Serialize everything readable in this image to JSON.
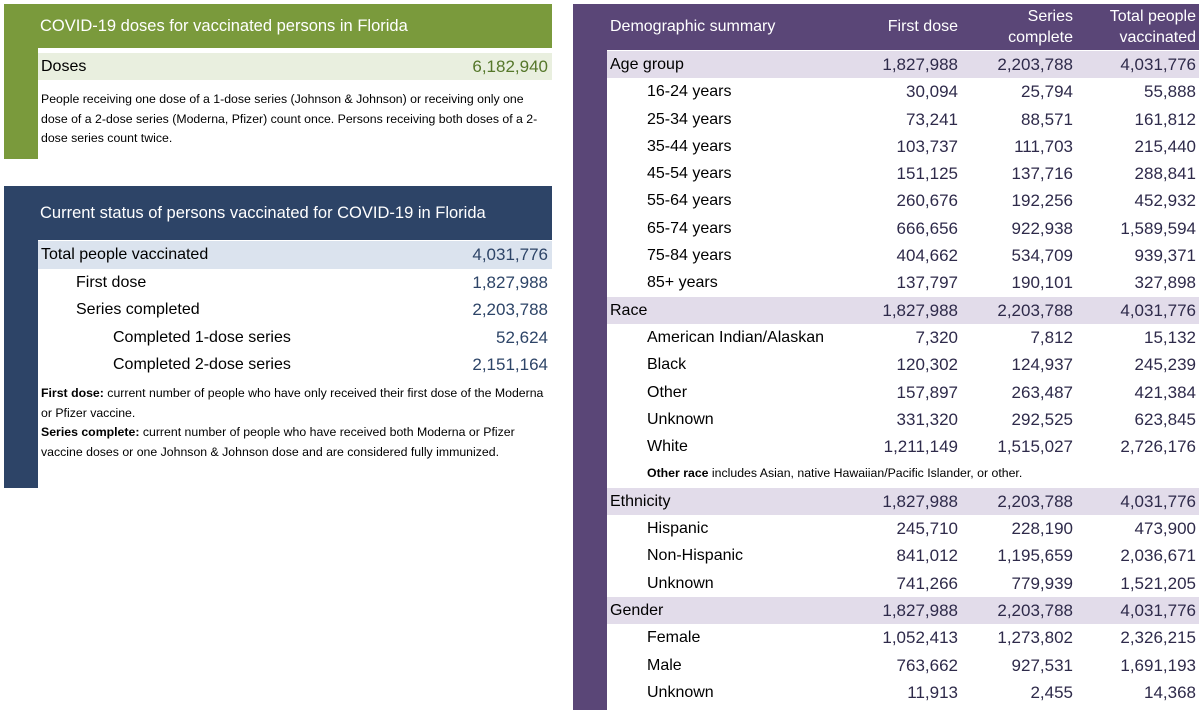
{
  "doses_panel": {
    "title": "COVID-19 doses for vaccinated persons in Florida",
    "label": "Doses",
    "value": "6,182,940",
    "note": "People receiving one dose of a 1-dose series (Johnson & Johnson) or receiving only one dose of a 2-dose series (Moderna, Pfizer) count once. Persons receiving both doses of a 2-dose series count twice."
  },
  "status_panel": {
    "title": "Current status of persons vaccinated for COVID-19 in Florida",
    "rows": [
      {
        "label": "Total people vaccinated",
        "value": "4,031,776"
      },
      {
        "label": "First dose",
        "value": "1,827,988"
      },
      {
        "label": "Series completed",
        "value": "2,203,788"
      },
      {
        "label": "Completed 1-dose series",
        "value": "52,624"
      },
      {
        "label": "Completed 2-dose series",
        "value": "2,151,164"
      }
    ],
    "notes": {
      "first_dose_term": "First dose:",
      "first_dose_text": " current number of people who have only received their first dose of the Moderna or Pfizer vaccine.",
      "series_term": "Series complete:",
      "series_text": " current number of people who have received both Moderna or Pfizer vaccine doses or one Johnson & Johnson dose and are considered fully immunized."
    }
  },
  "demographic": {
    "header": {
      "title": "Demographic summary",
      "col1": "First dose",
      "col2_line1": "Series",
      "col2_line2": "complete",
      "col3_line1": "Total people",
      "col3_line2": "vaccinated"
    },
    "age": {
      "label": "Age group",
      "v1": "1,827,988",
      "v2": "2,203,788",
      "v3": "4,031,776",
      "rows": [
        {
          "label": "16-24 years",
          "v1": "30,094",
          "v2": "25,794",
          "v3": "55,888"
        },
        {
          "label": "25-34 years",
          "v1": "73,241",
          "v2": "88,571",
          "v3": "161,812"
        },
        {
          "label": "35-44 years",
          "v1": "103,737",
          "v2": "111,703",
          "v3": "215,440"
        },
        {
          "label": "45-54 years",
          "v1": "151,125",
          "v2": "137,716",
          "v3": "288,841"
        },
        {
          "label": "55-64 years",
          "v1": "260,676",
          "v2": "192,256",
          "v3": "452,932"
        },
        {
          "label": "65-74 years",
          "v1": "666,656",
          "v2": "922,938",
          "v3": "1,589,594"
        },
        {
          "label": "75-84 years",
          "v1": "404,662",
          "v2": "534,709",
          "v3": "939,371"
        },
        {
          "label": "85+ years",
          "v1": "137,797",
          "v2": "190,101",
          "v3": "327,898"
        }
      ]
    },
    "race": {
      "label": "Race",
      "v1": "1,827,988",
      "v2": "2,203,788",
      "v3": "4,031,776",
      "rows": [
        {
          "label": "American Indian/Alaskan",
          "v1": "7,320",
          "v2": "7,812",
          "v3": "15,132"
        },
        {
          "label": "Black",
          "v1": "120,302",
          "v2": "124,937",
          "v3": "245,239"
        },
        {
          "label": "Other",
          "v1": "157,897",
          "v2": "263,487",
          "v3": "421,384"
        },
        {
          "label": "Unknown",
          "v1": "331,320",
          "v2": "292,525",
          "v3": "623,845"
        },
        {
          "label": "White",
          "v1": "1,211,149",
          "v2": "1,515,027",
          "v3": "2,726,176"
        }
      ],
      "note_term": "Other race",
      "note_text": " includes Asian, native Hawaiian/Pacific Islander, or other."
    },
    "ethnicity": {
      "label": "Ethnicity",
      "v1": "1,827,988",
      "v2": "2,203,788",
      "v3": "4,031,776",
      "rows": [
        {
          "label": "Hispanic",
          "v1": "245,710",
          "v2": "228,190",
          "v3": "473,900"
        },
        {
          "label": "Non-Hispanic",
          "v1": "841,012",
          "v2": "1,195,659",
          "v3": "2,036,671"
        },
        {
          "label": "Unknown",
          "v1": "741,266",
          "v2": "779,939",
          "v3": "1,521,205"
        }
      ]
    },
    "gender": {
      "label": "Gender",
      "v1": "1,827,988",
      "v2": "2,203,788",
      "v3": "4,031,776",
      "rows": [
        {
          "label": "Female",
          "v1": "1,052,413",
          "v2": "1,273,802",
          "v3": "2,326,215"
        },
        {
          "label": "Male",
          "v1": "763,662",
          "v2": "927,531",
          "v3": "1,691,193"
        },
        {
          "label": "Unknown",
          "v1": "11,913",
          "v2": "2,455",
          "v3": "14,368"
        }
      ]
    }
  }
}
